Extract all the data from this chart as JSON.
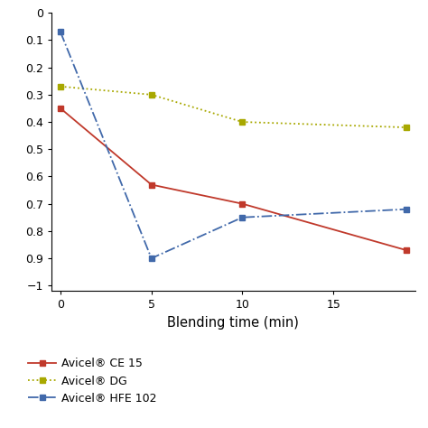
{
  "series": [
    {
      "label": "Avicel® CE 15",
      "x": [
        0,
        5,
        10,
        19
      ],
      "y": [
        -0.35,
        -0.63,
        -0.7,
        -0.87
      ],
      "color": "#c0392b",
      "marker": "s",
      "linestyle": "-",
      "linewidth": 1.3,
      "markersize": 5
    },
    {
      "label": "Avicel® DG",
      "x": [
        0,
        5,
        10,
        19
      ],
      "y": [
        -0.27,
        -0.3,
        -0.4,
        -0.42
      ],
      "color": "#a8a800",
      "marker": "s",
      "linestyle": ":",
      "linewidth": 1.3,
      "markersize": 5
    },
    {
      "label": "Avicel® HFE 102",
      "x": [
        0,
        5,
        10,
        19
      ],
      "y": [
        -0.07,
        -0.9,
        -0.75,
        -0.72
      ],
      "color": "#4169aa",
      "marker": "s",
      "linestyle": "-.",
      "linewidth": 1.3,
      "markersize": 5
    }
  ],
  "xlabel": "Blending time (min)",
  "xlim": [
    -0.5,
    19.5
  ],
  "ylim": [
    -1.02,
    0.0
  ],
  "yticks": [
    0,
    -0.1,
    -0.2,
    -0.3,
    -0.4,
    -0.5,
    -0.6,
    -0.7,
    -0.8,
    -0.9,
    -1.0
  ],
  "ytick_labels": [
    "0",
    "0.1",
    "0.2",
    "0.3",
    "0.4",
    "0.5",
    "0.6",
    "0.7",
    "0.8",
    "0.9",
    "−1"
  ],
  "xticks": [
    0,
    5,
    10,
    15
  ],
  "background_color": "#ffffff",
  "figsize": [
    4.74,
    4.74
  ],
  "dpi": 100
}
